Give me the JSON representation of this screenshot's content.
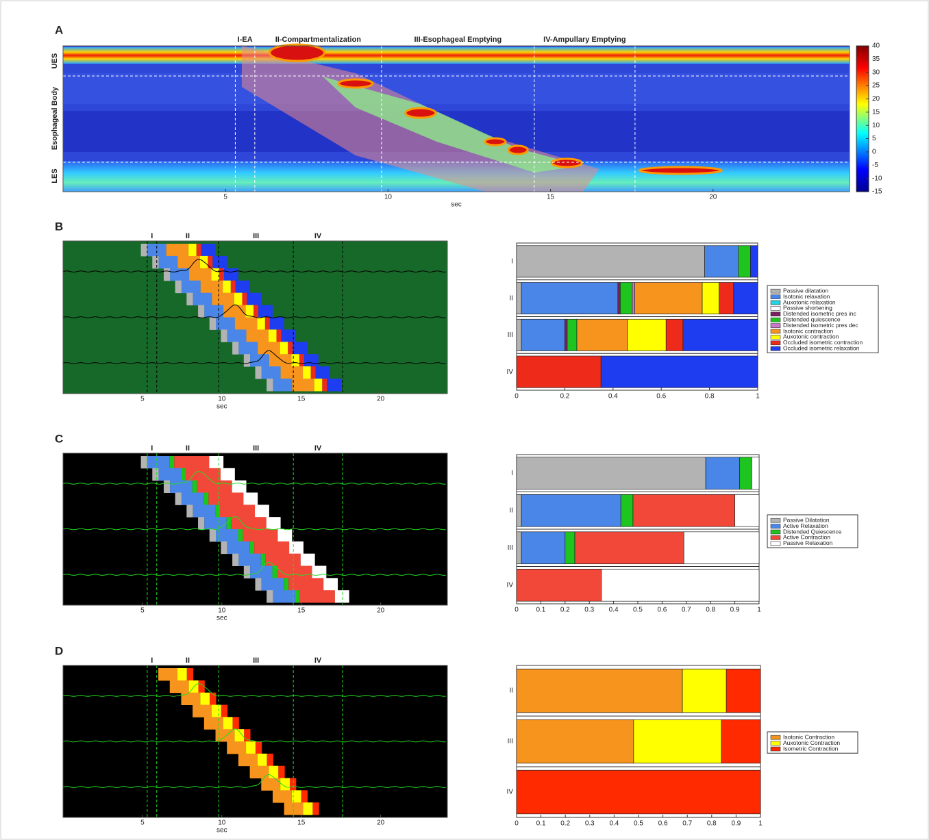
{
  "chart_data": [
    {
      "type": "heatmap",
      "panel": "A",
      "xlim": [
        0,
        24.2
      ],
      "xticks": [
        5,
        10,
        15,
        20
      ],
      "xlabel": "sec",
      "row_labels": [
        "UES",
        "Esophageal Body",
        "LES"
      ],
      "phases": [
        "I-EA",
        "II-Compartmentalization",
        "III-Esophageal Emptying",
        "IV-Ampullary Emptying"
      ],
      "phase_lines": [
        5.3,
        5.9,
        9.8,
        14.5,
        17.6
      ],
      "clim": [
        -15,
        40
      ],
      "cticks": [
        -15,
        -10,
        -5,
        0,
        5,
        10,
        15,
        20,
        25,
        30,
        35,
        40
      ]
    },
    {
      "type": "tiles",
      "panel": "B",
      "xlim": [
        0,
        24.2
      ],
      "xticks": [
        5,
        10,
        15,
        20
      ],
      "xlabel": "sec",
      "phases": [
        "I",
        "II",
        "III",
        "IV"
      ],
      "phase_lines": [
        5.3,
        5.9,
        9.8,
        14.5,
        17.6
      ],
      "background": "#17692a",
      "trace_color": "#000000"
    },
    {
      "type": "hbar",
      "stacked": true,
      "categories": [
        "I",
        "II",
        "III",
        "IV"
      ],
      "xlim": [
        0,
        1
      ],
      "xticks": [
        0,
        0.2,
        0.4,
        0.6,
        0.8,
        1
      ],
      "series": [
        {
          "name": "Passive dilatation",
          "color": "#b3b3b3",
          "values": [
            0.78,
            0.02,
            0.02,
            0
          ]
        },
        {
          "name": "Isotonic relaxation",
          "color": "#4a86e8",
          "values": [
            0.14,
            0.4,
            0.18,
            0
          ]
        },
        {
          "name": "Auxotonic relaxation",
          "color": "#22d3e0",
          "values": [
            0,
            0,
            0,
            0
          ]
        },
        {
          "name": "Passive shortening",
          "color": "#ffffff",
          "values": [
            0,
            0,
            0,
            0
          ]
        },
        {
          "name": "Distended isometric pres inc",
          "color": "#7b1f5f",
          "values": [
            0,
            0.01,
            0.01,
            0
          ]
        },
        {
          "name": "Distended quiescence",
          "color": "#1ec51e",
          "values": [
            0.05,
            0.05,
            0.04,
            0
          ]
        },
        {
          "name": "Distended isometric pres dec",
          "color": "#cc77cc",
          "values": [
            0,
            0.01,
            0,
            0
          ]
        },
        {
          "name": "Isotonic contraction",
          "color": "#f7941d",
          "values": [
            0,
            0.28,
            0.21,
            0
          ]
        },
        {
          "name": "Auxotonic contraction",
          "color": "#ffff00",
          "values": [
            0,
            0.07,
            0.16,
            0
          ]
        },
        {
          "name": "Occluded isometric contraction",
          "color": "#ee2a1b",
          "values": [
            0,
            0.06,
            0.07,
            0.35
          ]
        },
        {
          "name": "Occluded isometric relaxation",
          "color": "#1e3cf0",
          "values": [
            0.03,
            0.1,
            0.31,
            0.65
          ]
        }
      ]
    },
    {
      "type": "tiles",
      "panel": "C",
      "xlim": [
        0,
        24.2
      ],
      "xticks": [
        5,
        10,
        15,
        20
      ],
      "xlabel": "sec",
      "phases": [
        "I",
        "II",
        "III",
        "IV"
      ],
      "phase_lines": [
        5.3,
        5.9,
        9.8,
        14.5,
        17.6
      ],
      "background": "#000000",
      "trace_color": "#22dd22"
    },
    {
      "type": "hbar",
      "stacked": true,
      "categories": [
        "I",
        "II",
        "III",
        "IV"
      ],
      "xlim": [
        0,
        1
      ],
      "xticks": [
        0,
        0.1,
        0.2,
        0.3,
        0.4,
        0.5,
        0.6,
        0.7,
        0.8,
        0.9,
        1
      ],
      "series": [
        {
          "name": "Passive Dilatation",
          "color": "#b3b3b3",
          "values": [
            0.78,
            0.02,
            0.02,
            0
          ]
        },
        {
          "name": "Active Relaxation",
          "color": "#4a86e8",
          "values": [
            0.14,
            0.41,
            0.18,
            0
          ]
        },
        {
          "name": "Distended Quiescence",
          "color": "#1ec51e",
          "values": [
            0.05,
            0.05,
            0.04,
            0
          ]
        },
        {
          "name": "Active Contraction",
          "color": "#f2483a",
          "values": [
            0,
            0.42,
            0.45,
            0.35
          ]
        },
        {
          "name": "Passive Relaxation",
          "color": "#ffffff",
          "values": [
            0.03,
            0.1,
            0.31,
            0.65
          ]
        }
      ]
    },
    {
      "type": "tiles",
      "panel": "D",
      "xlim": [
        0,
        24.2
      ],
      "xticks": [
        5,
        10,
        15,
        20
      ],
      "xlabel": "sec",
      "phases": [
        "I",
        "II",
        "III",
        "IV"
      ],
      "phase_lines": [
        5.3,
        5.9,
        9.8,
        14.5,
        17.6
      ],
      "background": "#000000",
      "trace_color": "#22dd22"
    },
    {
      "type": "hbar",
      "stacked": true,
      "categories": [
        "II",
        "III",
        "IV"
      ],
      "xlim": [
        0,
        1
      ],
      "xticks": [
        0,
        0.1,
        0.2,
        0.3,
        0.4,
        0.5,
        0.6,
        0.7,
        0.8,
        0.9,
        1
      ],
      "series": [
        {
          "name": "Isotonic Contraction",
          "color": "#f7941d",
          "values": [
            0.68,
            0.48,
            0
          ]
        },
        {
          "name": "Auxotonic Contraction",
          "color": "#ffff00",
          "values": [
            0.18,
            0.36,
            0
          ]
        },
        {
          "name": "Isometric Contraction",
          "color": "#ff2a00",
          "values": [
            0.14,
            0.16,
            1
          ]
        }
      ]
    }
  ]
}
